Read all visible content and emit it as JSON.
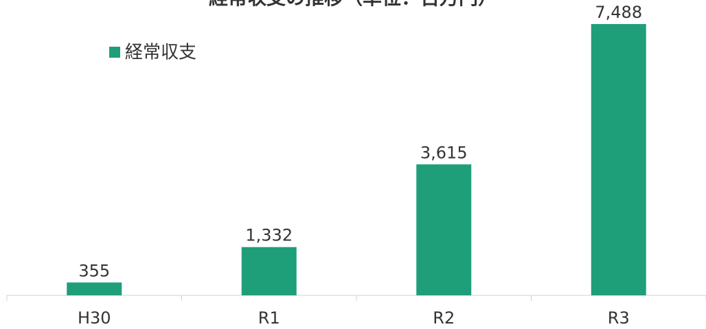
{
  "chart_data": {
    "type": "bar",
    "title": "経常収支の推移（単位：百万円）",
    "categories": [
      "H30",
      "R1",
      "R2",
      "R3"
    ],
    "series": [
      {
        "name": "経常収支",
        "color": "#1f9e7a",
        "values": [
          355,
          1332,
          3615,
          7488
        ],
        "value_labels": [
          "355",
          "1,332",
          "3,615",
          "7,488"
        ]
      }
    ],
    "legend": "top-left"
  }
}
